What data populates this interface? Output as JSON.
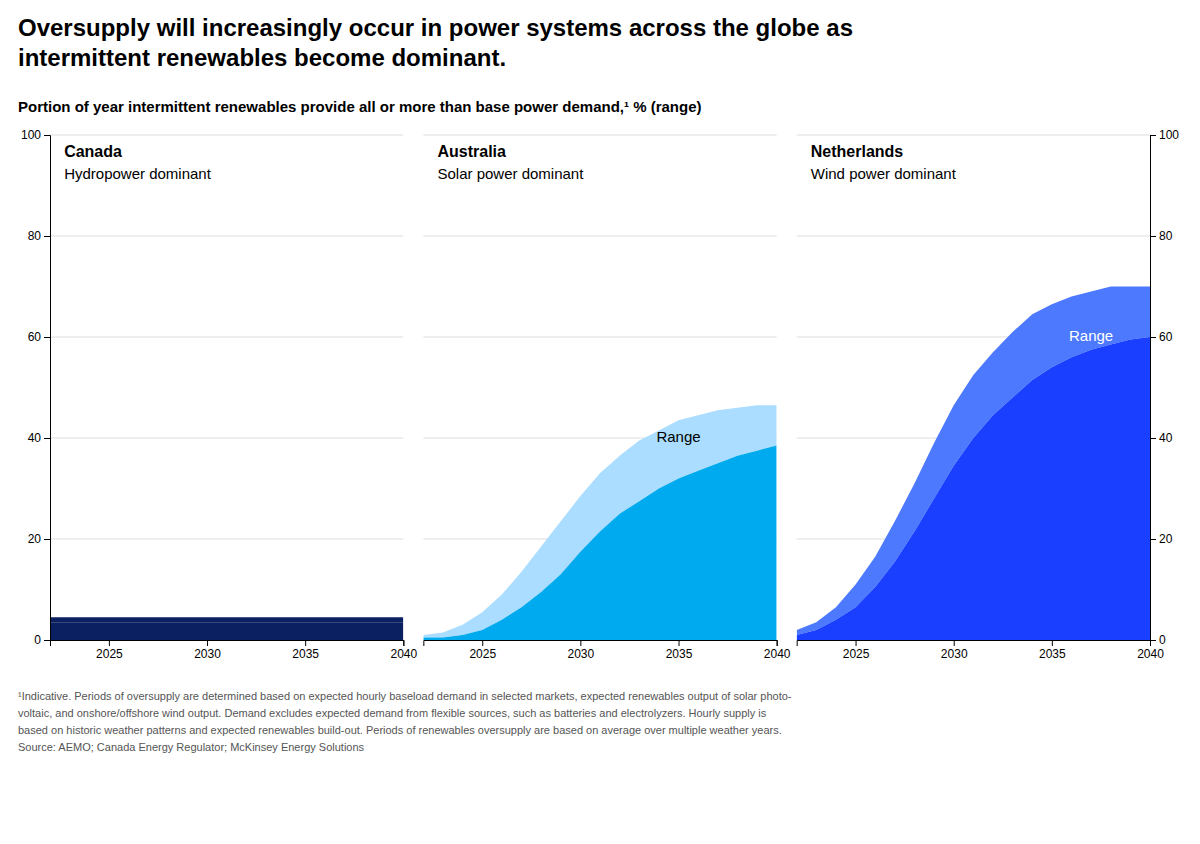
{
  "title": "Oversupply will increasingly occur in power systems across the globe as\nintermittent renewables become dominant.",
  "subtitle": "Portion of year intermittent renewables provide all or more than base power demand,¹ % (range)",
  "footnote": "¹Indicative. Periods of oversupply are determined based on expected hourly baseload demand in selected markets, expected renewables output of solar photo-\nvoltaic, and onshore/offshore wind output. Demand excludes expected demand from flexible sources, such as batteries and electrolyzers. Hourly supply is\nbased on historic weather patterns and expected renewables build-out. Periods of renewables oversupply are based on average over multiple weather years.\nSource: AEMO; Canada Energy Regulator; McKinsey Energy Solutions",
  "chart_data": [
    {
      "type": "area",
      "title": "Canada",
      "subtitle": "Hydropower dominant",
      "x": [
        2022,
        2023,
        2024,
        2025,
        2026,
        2027,
        2028,
        2029,
        2030,
        2031,
        2032,
        2033,
        2034,
        2035,
        2036,
        2037,
        2038,
        2039,
        2040
      ],
      "series": [
        {
          "color": "#0a2060",
          "values": [
            3.5,
            3.5,
            3.5,
            3.5,
            3.5,
            3.5,
            3.5,
            3.5,
            3.5,
            3.5,
            3.5,
            3.5,
            3.5,
            3.5,
            3.5,
            3.5,
            3.5,
            3.5,
            3.5
          ]
        },
        {
          "color": "#0a2060",
          "values": [
            4.5,
            4.5,
            4.5,
            4.5,
            4.5,
            4.5,
            4.5,
            4.5,
            4.5,
            4.5,
            4.5,
            4.5,
            4.5,
            4.5,
            4.5,
            4.5,
            4.5,
            4.5,
            4.5
          ]
        }
      ],
      "xlim": [
        2022,
        2040
      ],
      "xticks": [
        2025,
        2030,
        2035,
        2040
      ],
      "ylim": [
        0,
        100
      ],
      "yticks": [
        0,
        20,
        40,
        60,
        80,
        100
      ],
      "grid": true
    },
    {
      "type": "area",
      "title": "Australia",
      "subtitle": "Solar power dominant",
      "x": [
        2022,
        2023,
        2024,
        2025,
        2026,
        2027,
        2028,
        2029,
        2030,
        2031,
        2032,
        2033,
        2034,
        2035,
        2036,
        2037,
        2038,
        2039,
        2040
      ],
      "series": [
        {
          "color": "#00aaee",
          "values": [
            0.5,
            0.5,
            1.0,
            2.0,
            4.0,
            6.5,
            9.5,
            13.0,
            17.5,
            21.5,
            25.0,
            27.5,
            30.0,
            32.0,
            33.5,
            35.0,
            36.5,
            37.5,
            38.5
          ]
        },
        {
          "color": "#aaddff",
          "values": [
            1.0,
            1.5,
            3.0,
            5.5,
            9.0,
            13.5,
            18.5,
            23.5,
            28.5,
            33.0,
            36.5,
            39.5,
            41.5,
            43.5,
            44.5,
            45.5,
            46.0,
            46.5,
            46.5
          ]
        }
      ],
      "annotations": [
        {
          "text": "Range",
          "x": 2035,
          "y": 40,
          "color": "black"
        }
      ],
      "xlim": [
        2022,
        2040
      ],
      "xticks": [
        2025,
        2030,
        2035,
        2040
      ],
      "ylim": [
        0,
        100
      ],
      "yticks": [
        0,
        20,
        40,
        60,
        80,
        100
      ],
      "grid": true,
      "tick_labels": "x"
    },
    {
      "type": "area",
      "title": "Netherlands",
      "subtitle": "Wind power dominant",
      "x": [
        2022,
        2023,
        2024,
        2025,
        2026,
        2027,
        2028,
        2029,
        2030,
        2031,
        2032,
        2033,
        2034,
        2035,
        2036,
        2037,
        2038,
        2039,
        2040
      ],
      "series": [
        {
          "color": "#1a3fff",
          "values": [
            1.0,
            2.0,
            4.0,
            6.5,
            10.5,
            15.5,
            21.5,
            28.0,
            34.5,
            40.0,
            44.5,
            48.0,
            51.5,
            54.0,
            56.0,
            57.5,
            58.5,
            59.5,
            60.0
          ]
        },
        {
          "color": "#4d79ff",
          "values": [
            2.0,
            3.5,
            6.5,
            11.0,
            16.5,
            23.5,
            31.0,
            39.0,
            46.5,
            52.5,
            57.0,
            61.0,
            64.5,
            66.5,
            68.0,
            69.0,
            70.0,
            70.0,
            70.0
          ]
        }
      ],
      "annotations": [
        {
          "text": "Range",
          "x": 2037,
          "y": 60,
          "color": "white"
        }
      ],
      "xlim": [
        2022,
        2040
      ],
      "xticks": [
        2025,
        2030,
        2035,
        2040
      ],
      "ylim": [
        0,
        100
      ],
      "yticks": [
        0,
        20,
        40,
        60,
        80,
        100
      ],
      "grid": true
    }
  ]
}
